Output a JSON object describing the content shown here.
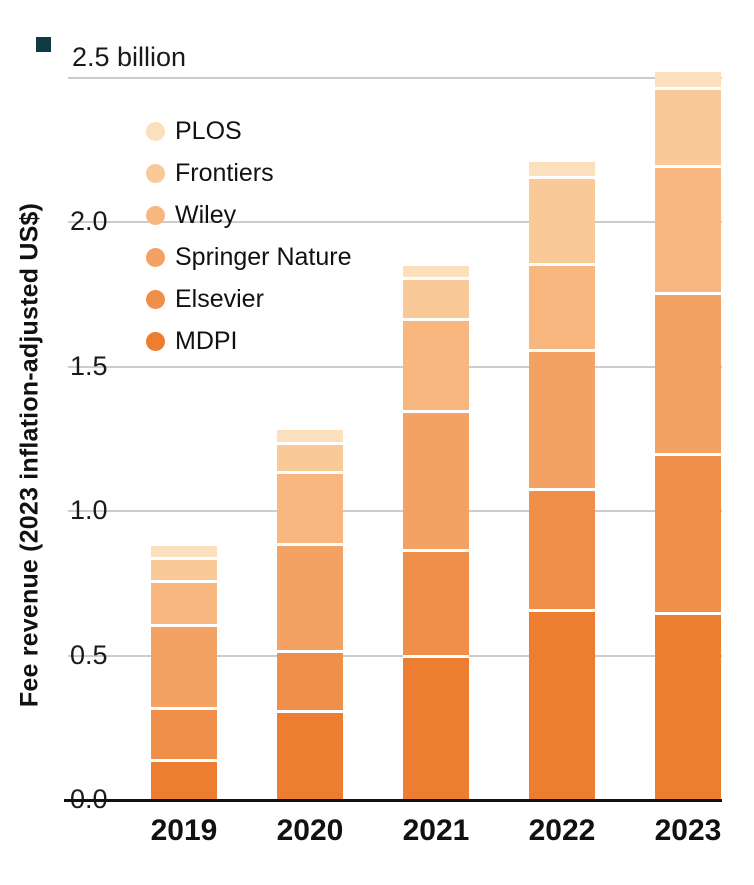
{
  "decor": {
    "corner_mark_color": "#0f3a44"
  },
  "chart_data": {
    "type": "bar",
    "stacked": true,
    "ylabel": "Fee revenue (2023 inflation-adjusted US$)",
    "top_axis_label": "2.5 billion",
    "unit": "billion US$",
    "categories": [
      "2019",
      "2020",
      "2021",
      "2022",
      "2023"
    ],
    "series": [
      {
        "name": "MDPI",
        "color": "#ed7d31",
        "values": [
          0.13,
          0.3,
          0.49,
          0.65,
          0.64
        ]
      },
      {
        "name": "Elsevier",
        "color": "#f08f4a",
        "values": [
          0.18,
          0.21,
          0.37,
          0.42,
          0.55
        ]
      },
      {
        "name": "Springer Nature",
        "color": "#f4a263",
        "values": [
          0.29,
          0.37,
          0.48,
          0.48,
          0.56
        ]
      },
      {
        "name": "Wiley",
        "color": "#f7b77f",
        "values": [
          0.15,
          0.25,
          0.32,
          0.3,
          0.44
        ]
      },
      {
        "name": "Frontiers",
        "color": "#fac998",
        "values": [
          0.08,
          0.1,
          0.14,
          0.3,
          0.27
        ]
      },
      {
        "name": "PLOS",
        "color": "#fcdfbd",
        "values": [
          0.05,
          0.05,
          0.05,
          0.06,
          0.06
        ]
      }
    ],
    "legend_order": [
      "PLOS",
      "Frontiers",
      "Wiley",
      "Springer Nature",
      "Elsevier",
      "MDPI"
    ],
    "yticks": [
      {
        "label": "0.0",
        "value": 0.0
      },
      {
        "label": "0.5",
        "value": 0.5
      },
      {
        "label": "1.0",
        "value": 1.0
      },
      {
        "label": "1.5",
        "value": 1.5
      },
      {
        "label": "2.0",
        "value": 2.0
      }
    ],
    "gridline_values": [
      0.5,
      1.0,
      1.5,
      2.0,
      2.5
    ],
    "ylim": [
      0,
      2.5
    ],
    "grid": true,
    "legend_position": "upper-left-inside"
  }
}
